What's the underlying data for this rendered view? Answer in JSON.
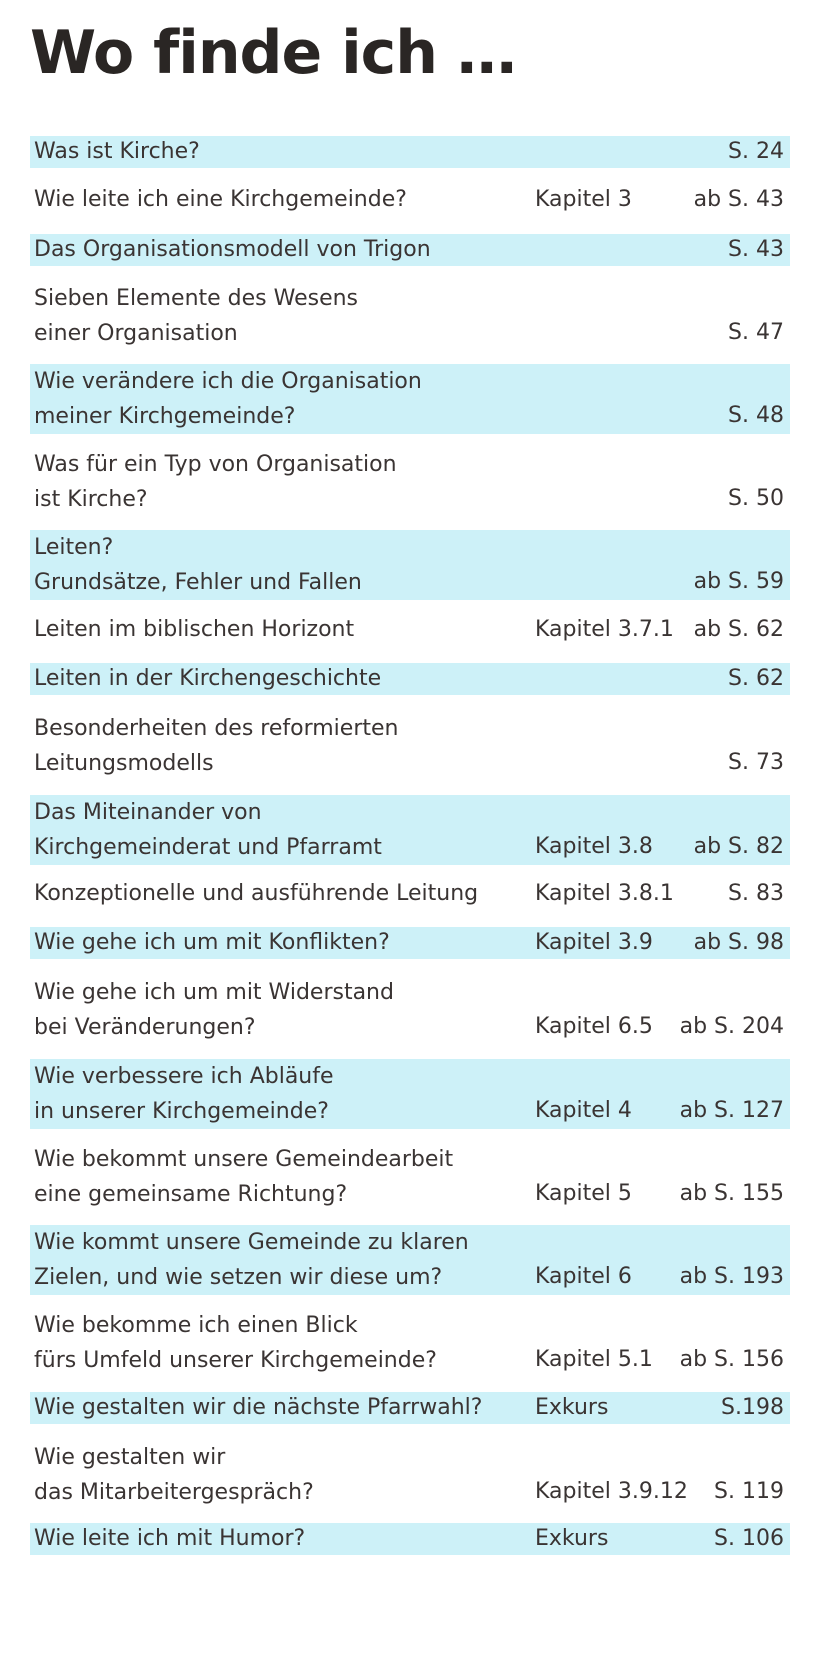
{
  "title": "Wo finde ich …",
  "rows": [
    {
      "question": "Was ist Kirche?",
      "chapter": "",
      "page": "S. 24"
    },
    {
      "question": "Wie leite ich eine Kirchgemeinde?",
      "chapter": "Kapitel 3",
      "page": "ab S. 43"
    },
    {
      "question": "Das Organisationsmodell von Trigon",
      "chapter": "",
      "page": "S. 43"
    },
    {
      "question": "Sieben Elemente des Wesens\neiner Organisation",
      "chapter": "",
      "page": "S. 47"
    },
    {
      "question": "Wie verändere ich die Organisation\nmeiner Kirchgemeinde?",
      "chapter": "",
      "page": "S. 48"
    },
    {
      "question": "Was für ein Typ von Organisation\nist Kirche?",
      "chapter": "",
      "page": "S. 50"
    },
    {
      "question": "Leiten?\nGrundsätze, Fehler und Fallen",
      "chapter": "",
      "page": "ab S. 59"
    },
    {
      "question": "Leiten im biblischen Horizont",
      "chapter": "Kapitel 3.7.1",
      "page": "ab S. 62"
    },
    {
      "question": "Leiten in der Kirchengeschichte",
      "chapter": "",
      "page": "S. 62"
    },
    {
      "question": "Besonderheiten des reformierten\nLeitungsmodells",
      "chapter": "",
      "page": "S.  73"
    },
    {
      "question": "Das Miteinander von\nKirchgemeinderat und Pfarramt",
      "chapter": "Kapitel 3.8",
      "page": "ab S. 82"
    },
    {
      "question": "Konzeptionelle und ausführende Leitung",
      "chapter": "Kapitel 3.8.1",
      "page": "S. 83"
    },
    {
      "question": "Wie gehe ich um mit Konflikten?",
      "chapter": "Kapitel 3.9",
      "page": "ab S. 98"
    },
    {
      "question": "Wie gehe ich um mit Widerstand\nbei Veränderungen?",
      "chapter": "Kapitel 6.5",
      "page": "ab S. 204"
    },
    {
      "question": "Wie verbessere ich Abläufe\nin unserer Kirchgemeinde?",
      "chapter": "Kapitel 4",
      "page": "ab S. 127"
    },
    {
      "question": "Wie bekommt unsere Gemeindearbeit\neine gemeinsame Richtung?",
      "chapter": "Kapitel 5",
      "page": "ab S. 155"
    },
    {
      "question": "Wie kommt unsere Gemeinde zu klaren\nZielen, und wie setzen wir diese um?",
      "chapter": "Kapitel 6",
      "page": "ab S. 193"
    },
    {
      "question": "Wie bekomme ich einen Blick\nfürs Umfeld unserer Kirchgemeinde?",
      "chapter": "Kapitel 5.1",
      "page": "ab S. 156"
    },
    {
      "question": "Wie gestalten wir die nächste Pfarrwahl?",
      "chapter": "Exkurs",
      "page": "S.198"
    },
    {
      "question": "Wie gestalten wir\ndas Mitarbeitergespräch?",
      "chapter": "Kapitel 3.9.12",
      "page": "S. 119"
    },
    {
      "question": "Wie leite ich mit Humor?",
      "chapter": "Exkurs",
      "page": "S. 106"
    }
  ],
  "colors": {
    "shade": "#cdf1f8",
    "text": "#3a3433",
    "title": "#2a2624"
  }
}
